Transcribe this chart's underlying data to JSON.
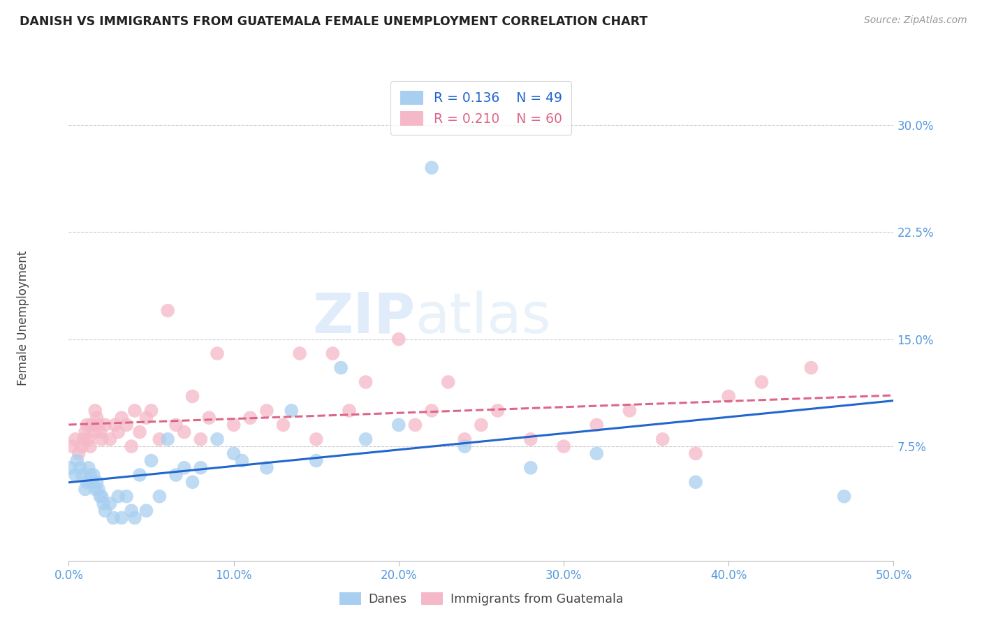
{
  "title": "DANISH VS IMMIGRANTS FROM GUATEMALA FEMALE UNEMPLOYMENT CORRELATION CHART",
  "source": "Source: ZipAtlas.com",
  "ylabel": "Female Unemployment",
  "xlim": [
    0.0,
    0.5
  ],
  "ylim": [
    -0.005,
    0.335
  ],
  "xticks": [
    0.0,
    0.1,
    0.2,
    0.3,
    0.4,
    0.5
  ],
  "xticklabels": [
    "0.0%",
    "10.0%",
    "20.0%",
    "30.0%",
    "40.0%",
    "50.0%"
  ],
  "yticks_right": [
    0.075,
    0.15,
    0.225,
    0.3
  ],
  "ytickslabels_right": [
    "7.5%",
    "15.0%",
    "22.5%",
    "30.0%"
  ],
  "grid_color": "#cccccc",
  "background_color": "#ffffff",
  "danes_color": "#a8cff0",
  "guatemala_color": "#f5b8c8",
  "danes_line_color": "#2266cc",
  "guatemala_line_color": "#dd6688",
  "danes_R": 0.136,
  "danes_N": 49,
  "guatemala_R": 0.21,
  "guatemala_N": 60,
  "legend_label_danes": "Danes",
  "legend_label_guatemala": "Immigrants from Guatemala",
  "watermark_zip": "ZIP",
  "watermark_atlas": "atlas",
  "danes_x": [
    0.001,
    0.004,
    0.005,
    0.007,
    0.008,
    0.01,
    0.011,
    0.012,
    0.013,
    0.014,
    0.015,
    0.016,
    0.017,
    0.018,
    0.019,
    0.02,
    0.021,
    0.022,
    0.025,
    0.027,
    0.03,
    0.032,
    0.035,
    0.038,
    0.04,
    0.043,
    0.047,
    0.05,
    0.055,
    0.06,
    0.065,
    0.07,
    0.075,
    0.08,
    0.09,
    0.1,
    0.105,
    0.12,
    0.135,
    0.15,
    0.165,
    0.18,
    0.2,
    0.22,
    0.24,
    0.28,
    0.32,
    0.38,
    0.47
  ],
  "danes_y": [
    0.06,
    0.055,
    0.065,
    0.06,
    0.055,
    0.045,
    0.05,
    0.06,
    0.055,
    0.05,
    0.055,
    0.045,
    0.05,
    0.045,
    0.04,
    0.04,
    0.035,
    0.03,
    0.035,
    0.025,
    0.04,
    0.025,
    0.04,
    0.03,
    0.025,
    0.055,
    0.03,
    0.065,
    0.04,
    0.08,
    0.055,
    0.06,
    0.05,
    0.06,
    0.08,
    0.07,
    0.065,
    0.06,
    0.1,
    0.065,
    0.13,
    0.08,
    0.09,
    0.27,
    0.075,
    0.06,
    0.07,
    0.05,
    0.04
  ],
  "guatemala_x": [
    0.002,
    0.004,
    0.006,
    0.008,
    0.009,
    0.01,
    0.011,
    0.012,
    0.013,
    0.014,
    0.015,
    0.016,
    0.017,
    0.018,
    0.019,
    0.02,
    0.022,
    0.025,
    0.028,
    0.03,
    0.032,
    0.035,
    0.038,
    0.04,
    0.043,
    0.047,
    0.05,
    0.055,
    0.06,
    0.065,
    0.07,
    0.075,
    0.08,
    0.085,
    0.09,
    0.1,
    0.11,
    0.12,
    0.13,
    0.14,
    0.15,
    0.16,
    0.17,
    0.18,
    0.2,
    0.21,
    0.22,
    0.23,
    0.24,
    0.25,
    0.26,
    0.28,
    0.3,
    0.32,
    0.34,
    0.36,
    0.38,
    0.4,
    0.42,
    0.45
  ],
  "guatemala_y": [
    0.075,
    0.08,
    0.07,
    0.075,
    0.08,
    0.085,
    0.09,
    0.08,
    0.075,
    0.09,
    0.085,
    0.1,
    0.095,
    0.09,
    0.085,
    0.08,
    0.09,
    0.08,
    0.09,
    0.085,
    0.095,
    0.09,
    0.075,
    0.1,
    0.085,
    0.095,
    0.1,
    0.08,
    0.17,
    0.09,
    0.085,
    0.11,
    0.08,
    0.095,
    0.14,
    0.09,
    0.095,
    0.1,
    0.09,
    0.14,
    0.08,
    0.14,
    0.1,
    0.12,
    0.15,
    0.09,
    0.1,
    0.12,
    0.08,
    0.09,
    0.1,
    0.08,
    0.075,
    0.09,
    0.1,
    0.08,
    0.07,
    0.11,
    0.12,
    0.13
  ]
}
